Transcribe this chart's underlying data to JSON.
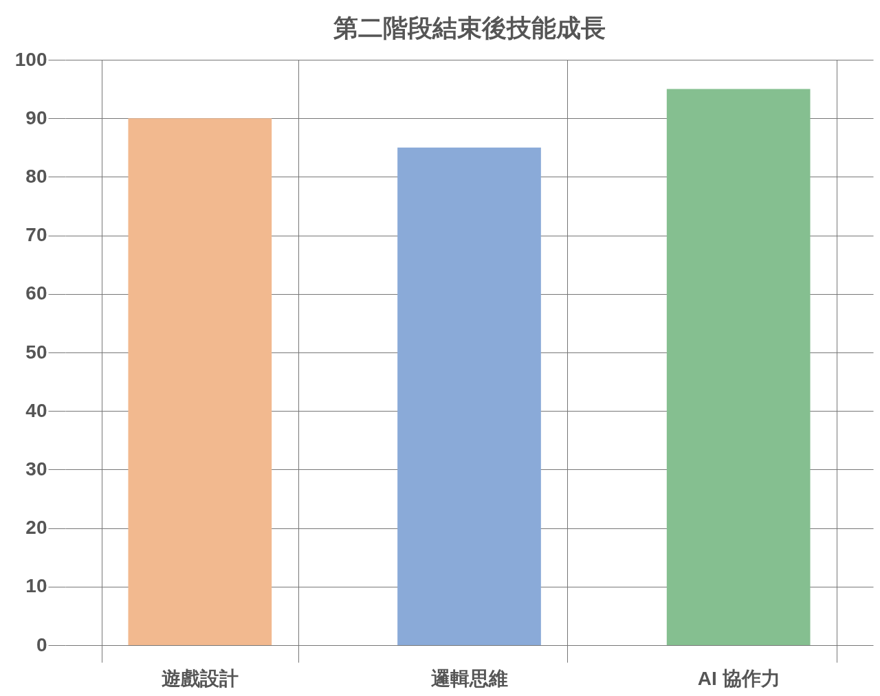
{
  "chart_data": {
    "type": "bar",
    "title": "第二階段結束後技能成長",
    "categories": [
      "遊戲設計",
      "邏輯思維",
      "AI 協作力"
    ],
    "values": [
      90,
      85,
      95
    ],
    "colors": [
      "#f2b98f",
      "#8aaad8",
      "#85bf90"
    ],
    "ylim": [
      0,
      100
    ],
    "yticks": [
      0,
      10,
      20,
      30,
      40,
      50,
      60,
      70,
      80,
      90,
      100
    ],
    "grid": true
  }
}
